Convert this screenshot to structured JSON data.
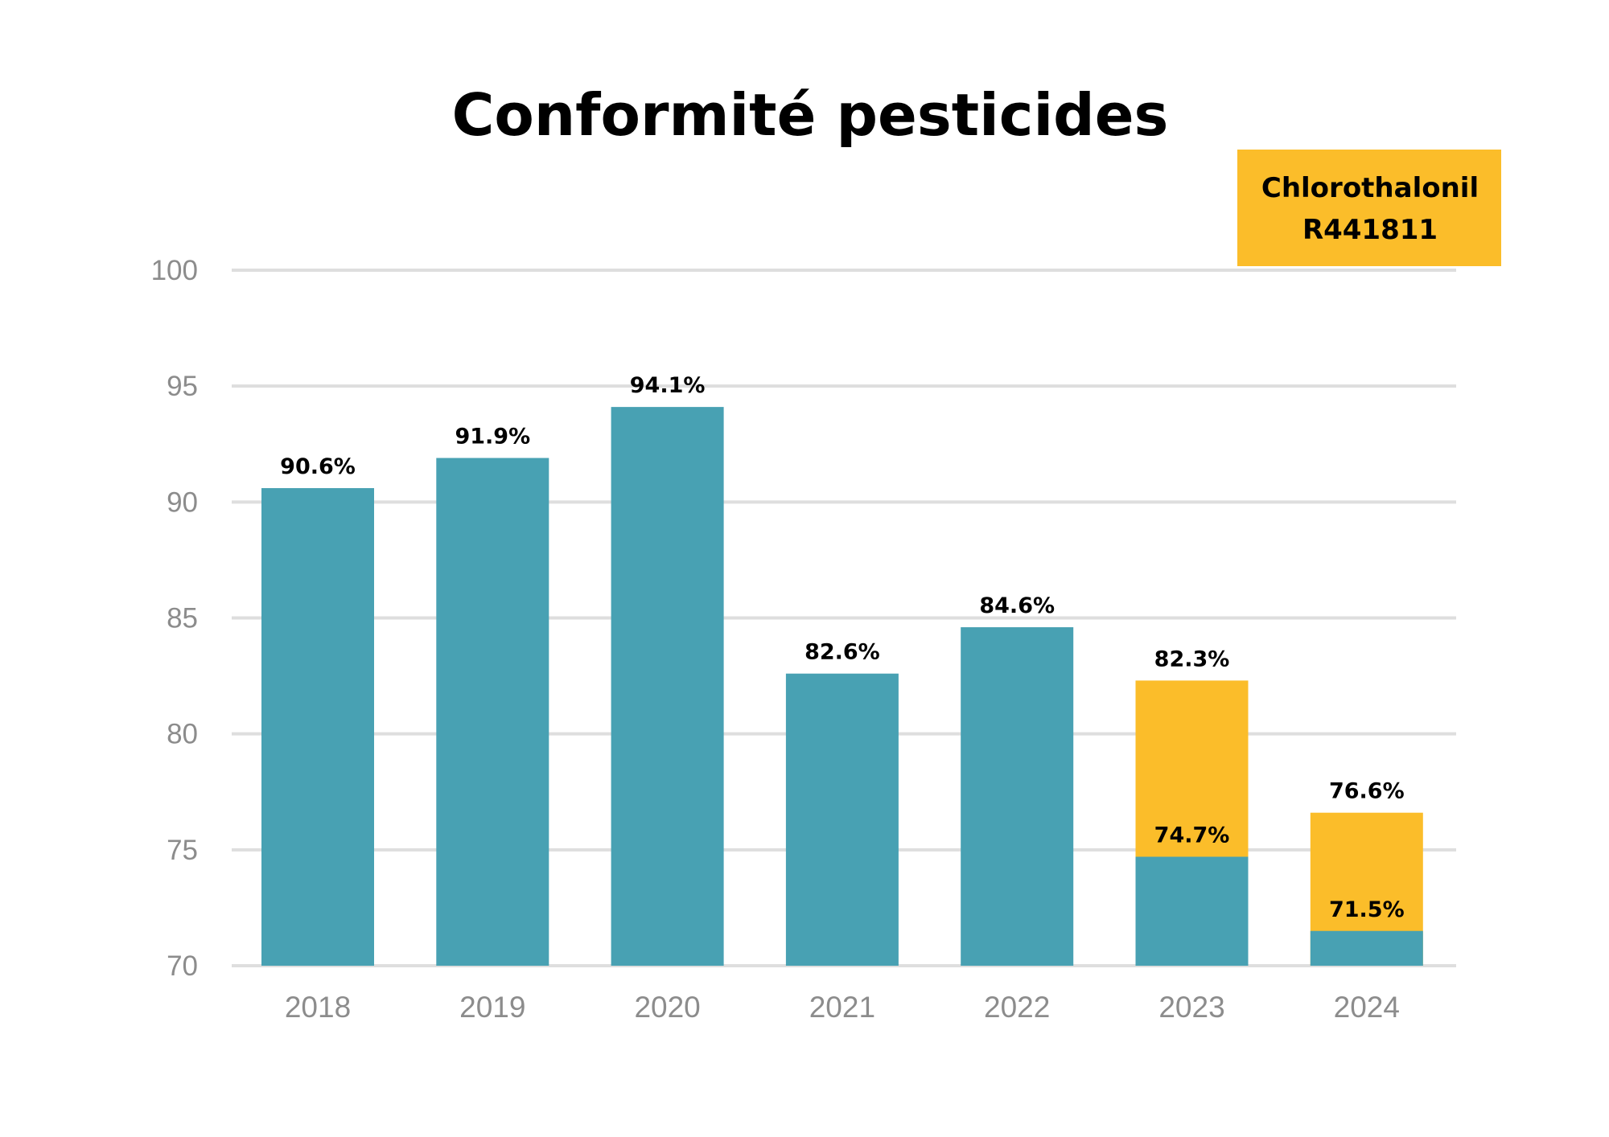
{
  "colors": {
    "base": "#48a1b3",
    "chlorothalonil": "#fbbd2a",
    "grid": "#dedede",
    "background": "#ffffff"
  },
  "chart_data": {
    "type": "bar",
    "title": "Conformité pesticides",
    "categories": [
      "2018",
      "2019",
      "2020",
      "2021",
      "2022",
      "2023",
      "2024"
    ],
    "yticks": [
      "100",
      "95",
      "90",
      "85",
      "80",
      "75",
      "70"
    ],
    "ylim": [
      70,
      100
    ],
    "grid": true,
    "legend": {
      "position": "top-right",
      "line1": "Chlorothalonil",
      "line2": "R441811"
    },
    "series": [
      {
        "values": [
          90.6,
          91.9,
          94.1,
          82.6,
          84.6,
          74.7,
          71.5
        ],
        "labels": [
          "90.6%",
          "91.9%",
          "94.1%",
          "82.6%",
          "84.6%",
          "74.7%",
          "71.5%"
        ]
      },
      {
        "name": "Chlorothalonil R441811",
        "values": [
          null,
          null,
          null,
          null,
          null,
          82.3,
          76.6
        ],
        "labels": [
          "",
          "",
          "",
          "",
          "",
          "82.3%",
          "76.6%"
        ]
      }
    ]
  }
}
